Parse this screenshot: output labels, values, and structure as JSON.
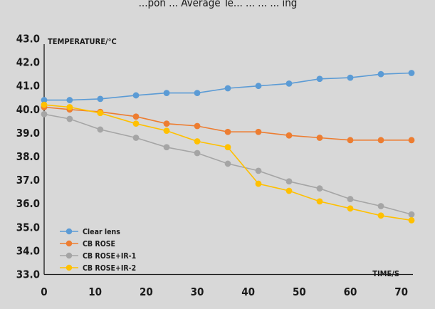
{
  "chart_data": {
    "type": "line",
    "title_partial": "...pon ... Average Te... ... ... ... ing",
    "ylabel": "TEMPERATURE/°C",
    "xlabel": "TIME/S",
    "ylim": [
      33.0,
      43.0
    ],
    "xlim": [
      0,
      72
    ],
    "y_ticks": [
      "43.0",
      "42.0",
      "41.0",
      "40.0",
      "39.0",
      "38.0",
      "37.0",
      "36.0",
      "35.0",
      "34.0",
      "33.0"
    ],
    "x_ticks": [
      "0",
      "10",
      "20",
      "30",
      "40",
      "50",
      "60",
      "70"
    ],
    "grid": false,
    "legend_position": "bottom-left",
    "series": [
      {
        "name": "Clear lens",
        "color": "#5b9bd5",
        "x": [
          0,
          5,
          11,
          18,
          24,
          30,
          36,
          42,
          48,
          54,
          60,
          66,
          72
        ],
        "y": [
          40.4,
          40.4,
          40.45,
          40.6,
          40.7,
          40.7,
          40.9,
          41.0,
          41.1,
          41.3,
          41.35,
          41.5,
          41.55
        ]
      },
      {
        "name": "CB ROSE",
        "color": "#ed7d31",
        "x": [
          0,
          5,
          11,
          18,
          24,
          30,
          36,
          42,
          48,
          54,
          60,
          66,
          72
        ],
        "y": [
          40.1,
          40.0,
          39.9,
          39.7,
          39.4,
          39.3,
          39.05,
          39.05,
          38.9,
          38.8,
          38.7,
          38.7,
          38.7
        ]
      },
      {
        "name": "CB ROSE+IR-1",
        "color": "#a5a5a5",
        "x": [
          0,
          5,
          11,
          18,
          24,
          30,
          36,
          42,
          48,
          54,
          60,
          66,
          72
        ],
        "y": [
          39.8,
          39.6,
          39.15,
          38.8,
          38.4,
          38.15,
          37.7,
          37.4,
          36.95,
          36.65,
          36.2,
          35.9,
          35.55
        ]
      },
      {
        "name": "CB ROSE+IR-2",
        "color": "#ffc000",
        "x": [
          0,
          5,
          11,
          18,
          24,
          30,
          36,
          42,
          48,
          54,
          60,
          66,
          72
        ],
        "y": [
          40.2,
          40.1,
          39.85,
          39.4,
          39.1,
          38.65,
          38.4,
          36.85,
          36.55,
          36.1,
          35.8,
          35.5,
          35.3
        ]
      }
    ]
  }
}
